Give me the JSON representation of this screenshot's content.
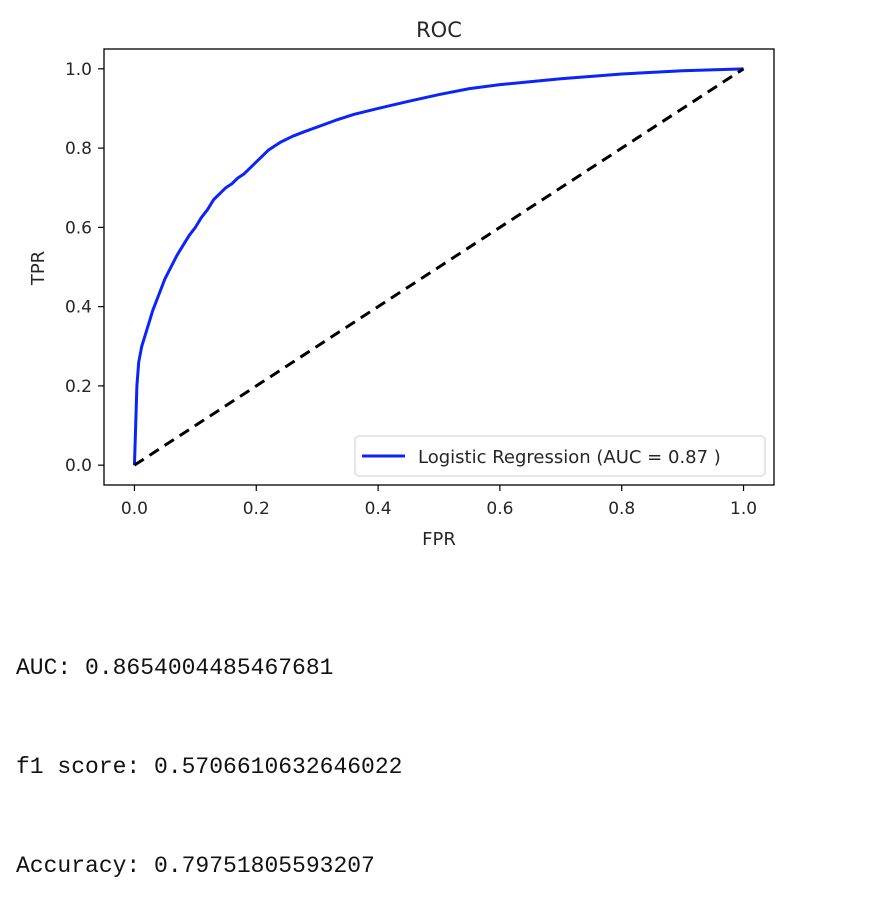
{
  "chart_data": {
    "type": "line",
    "title": "ROC",
    "xlabel": "FPR",
    "ylabel": "TPR",
    "xlim": [
      -0.05,
      1.05
    ],
    "ylim": [
      -0.05,
      1.05
    ],
    "xticks": [
      "0.0",
      "0.2",
      "0.4",
      "0.6",
      "0.8",
      "1.0"
    ],
    "yticks": [
      "0.0",
      "0.2",
      "0.4",
      "0.6",
      "0.8",
      "1.0"
    ],
    "grid": false,
    "legend_position": "lower-right",
    "series": [
      {
        "name": "Logistic Regression (AUC = 0.87 )",
        "color": "#0b24fb",
        "style": "solid",
        "x": [
          0.0,
          0.002,
          0.004,
          0.007,
          0.012,
          0.02,
          0.03,
          0.04,
          0.05,
          0.06,
          0.07,
          0.08,
          0.09,
          0.1,
          0.11,
          0.12,
          0.13,
          0.14,
          0.15,
          0.16,
          0.17,
          0.18,
          0.19,
          0.2,
          0.21,
          0.22,
          0.24,
          0.26,
          0.28,
          0.3,
          0.33,
          0.36,
          0.4,
          0.45,
          0.5,
          0.55,
          0.6,
          0.7,
          0.8,
          0.9,
          1.0
        ],
        "y": [
          0.0,
          0.1,
          0.2,
          0.26,
          0.3,
          0.34,
          0.39,
          0.43,
          0.47,
          0.5,
          0.53,
          0.555,
          0.58,
          0.6,
          0.625,
          0.645,
          0.67,
          0.685,
          0.7,
          0.71,
          0.725,
          0.735,
          0.75,
          0.765,
          0.78,
          0.795,
          0.815,
          0.83,
          0.842,
          0.853,
          0.87,
          0.885,
          0.9,
          0.918,
          0.935,
          0.95,
          0.96,
          0.975,
          0.987,
          0.995,
          1.0
        ]
      },
      {
        "name": "",
        "color": "#000000",
        "style": "dashed",
        "x": [
          0.0,
          1.0
        ],
        "y": [
          0.0,
          1.0
        ]
      }
    ]
  },
  "output": {
    "auc_line": "AUC: 0.8654004485467681",
    "f1_line": "f1 score: 0.5706610632646022",
    "accuracy_line": "Accuracy: 0.79751805593207"
  }
}
